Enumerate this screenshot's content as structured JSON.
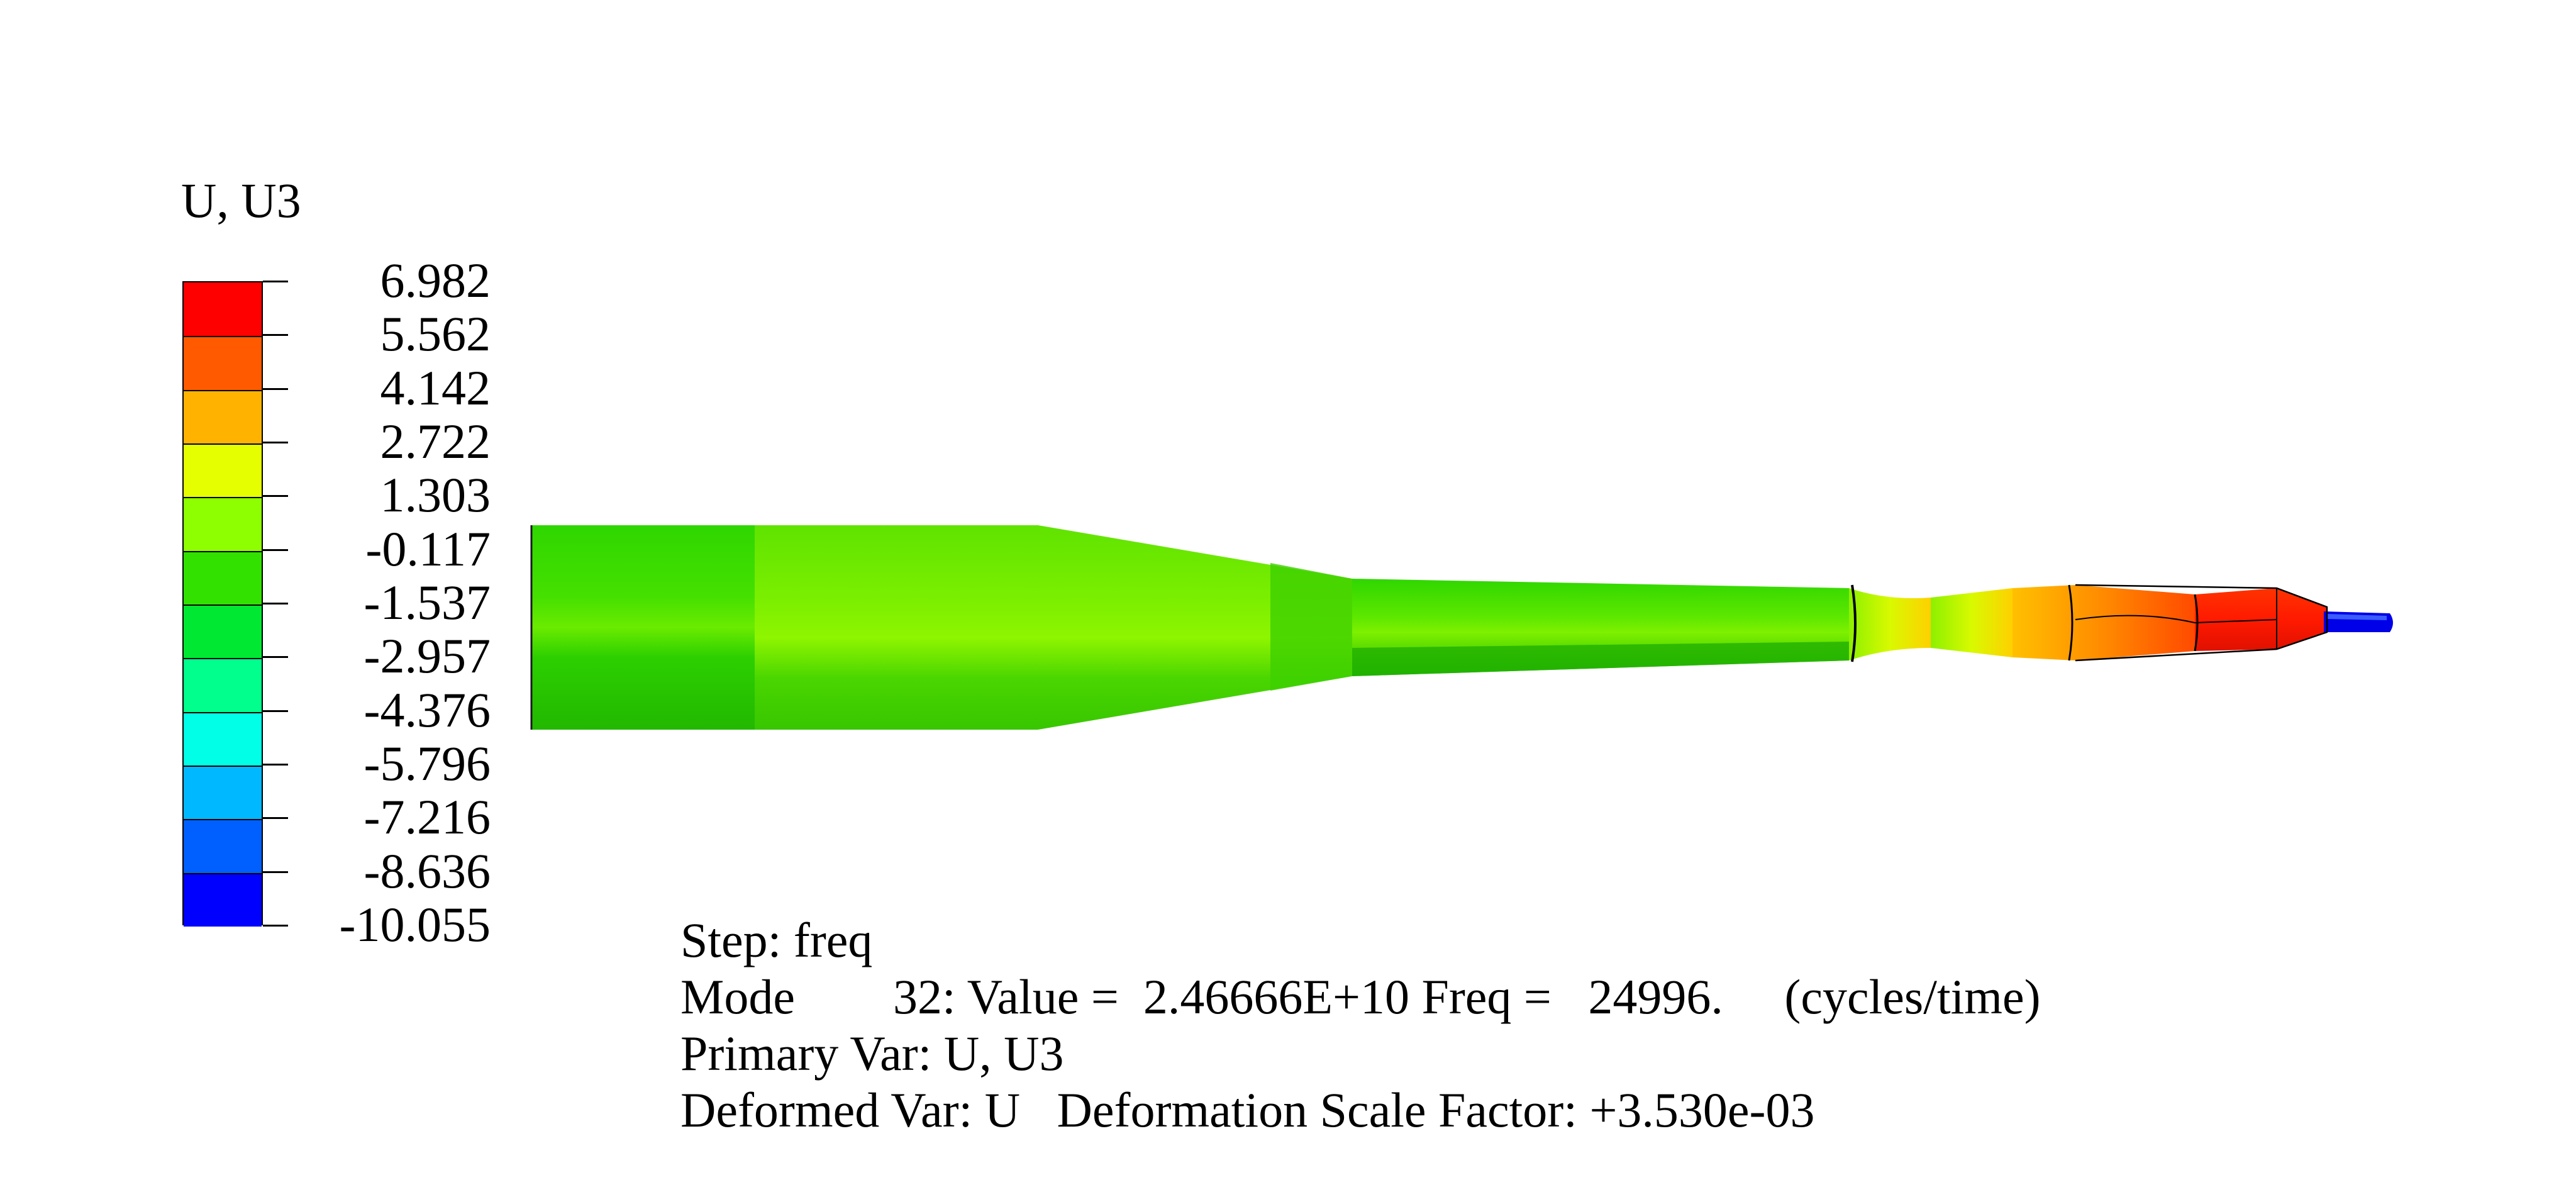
{
  "legend": {
    "title": "U, U3",
    "labels": [
      "6.982",
      "5.562",
      "4.142",
      "2.722",
      "1.303",
      "-0.117",
      "-1.537",
      "-2.957",
      "-4.376",
      "-5.796",
      "-7.216",
      "-8.636",
      "-10.055"
    ],
    "colors": [
      "#ff0000",
      "#ff5a00",
      "#ffb300",
      "#e6ff00",
      "#8dff00",
      "#32e100",
      "#00e832",
      "#00ff8c",
      "#00ffe6",
      "#00b8ff",
      "#005fff",
      "#0000ff"
    ]
  },
  "info": {
    "step": "Step: freq",
    "mode": "Mode        32: Value =  2.46666E+10 Freq =   24996.     (cycles/time)",
    "primary_var": "Primary Var: U, U3",
    "deformed_var": "Deformed Var: U   Deformation Scale Factor: +3.530e-03"
  },
  "model": {
    "colors": {
      "green_dark": "#22c400",
      "green_mid": "#2fd600",
      "green_light": "#7ef000",
      "yellow_green": "#b9f500",
      "yellow": "#e8ff00",
      "orange_yellow": "#ffb300",
      "orange": "#ff6a00",
      "red": "#ff1a00",
      "blue": "#0000ff"
    }
  }
}
